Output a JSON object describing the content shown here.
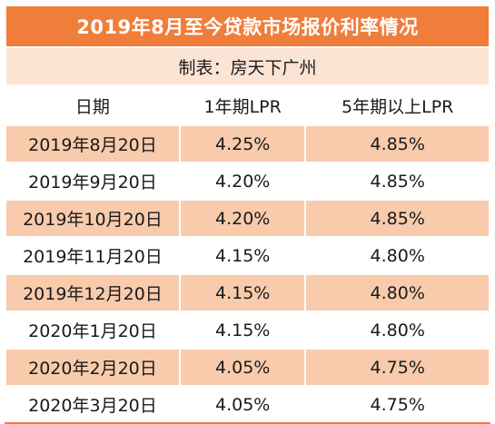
{
  "title": "2019年8月至今贷款市场报价利率情况",
  "source": "制表：房天下广州",
  "columns": [
    "日期",
    "1年期LPR",
    "5年期以上LPR"
  ],
  "rows": [
    {
      "date": "2019年8月20日",
      "lpr_1y": "4.25%",
      "lpr_5y": "4.85%"
    },
    {
      "date": "2019年9月20日",
      "lpr_1y": "4.20%",
      "lpr_5y": "4.85%"
    },
    {
      "date": "2019年10月20日",
      "lpr_1y": "4.20%",
      "lpr_5y": "4.85%"
    },
    {
      "date": "2019年11月20日",
      "lpr_1y": "4.15%",
      "lpr_5y": "4.80%"
    },
    {
      "date": "2019年12月20日",
      "lpr_1y": "4.15%",
      "lpr_5y": "4.80%"
    },
    {
      "date": "2020年1月20日",
      "lpr_1y": "4.15%",
      "lpr_5y": "4.80%"
    },
    {
      "date": "2020年2月20日",
      "lpr_1y": "4.05%",
      "lpr_5y": "4.75%"
    },
    {
      "date": "2020年3月20日",
      "lpr_1y": "4.05%",
      "lpr_5y": "4.75%"
    }
  ],
  "colors": {
    "title_bg": "#f07d3a",
    "title_text": "#ffffff",
    "source_bg": "#fce4d4",
    "shaded_row_bg": "#f8cbac",
    "plain_row_bg": "#ffffff"
  }
}
